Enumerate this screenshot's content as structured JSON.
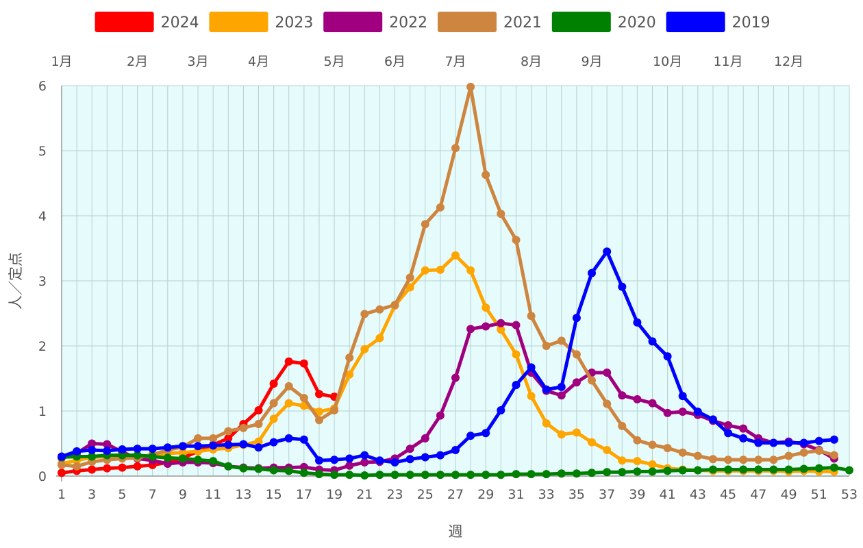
{
  "chart_data": {
    "type": "line",
    "title": "",
    "xlabel": "週",
    "ylabel": "人／定点",
    "xlim": [
      1,
      53
    ],
    "ylim": [
      0,
      6
    ],
    "y_ticks": [
      "0",
      "1",
      "2",
      "3",
      "4",
      "5",
      "6"
    ],
    "x_ticks": [
      "1",
      "3",
      "5",
      "7",
      "9",
      "11",
      "13",
      "15",
      "17",
      "19",
      "21",
      "23",
      "25",
      "27",
      "29",
      "31",
      "33",
      "35",
      "37",
      "39",
      "41",
      "43",
      "45",
      "47",
      "49",
      "51",
      "53"
    ],
    "months": [
      {
        "label": "1月",
        "week": 1
      },
      {
        "label": "2月",
        "week": 6
      },
      {
        "label": "3月",
        "week": 10
      },
      {
        "label": "4月",
        "week": 14
      },
      {
        "label": "5月",
        "week": 19
      },
      {
        "label": "6月",
        "week": 23
      },
      {
        "label": "7月",
        "week": 27
      },
      {
        "label": "8月",
        "week": 32
      },
      {
        "label": "9月",
        "week": 36
      },
      {
        "label": "10月",
        "week": 41
      },
      {
        "label": "11月",
        "week": 45
      },
      {
        "label": "12月",
        "week": 49
      }
    ],
    "legend_position": "top",
    "grid": true,
    "background_color": "#e6fcfc",
    "grid_color": "#b7cfcf",
    "series": [
      {
        "name": "2024",
        "color": "#ff0000",
        "x": [
          1,
          2,
          3,
          4,
          5,
          6,
          7,
          8,
          9,
          10,
          11,
          12,
          13,
          14,
          15,
          16,
          17,
          18,
          19
        ],
        "values": [
          0.05,
          0.08,
          0.1,
          0.12,
          0.13,
          0.15,
          0.17,
          0.21,
          0.28,
          0.38,
          0.48,
          0.58,
          0.8,
          1.01,
          1.42,
          1.76,
          1.73,
          1.26,
          1.22
        ]
      },
      {
        "name": "2023",
        "color": "#ffa500",
        "x": [
          1,
          2,
          3,
          4,
          5,
          6,
          7,
          8,
          9,
          10,
          11,
          12,
          13,
          14,
          15,
          16,
          17,
          18,
          19,
          20,
          21,
          22,
          23,
          24,
          25,
          26,
          27,
          28,
          29,
          30,
          31,
          32,
          33,
          34,
          35,
          36,
          37,
          38,
          39,
          40,
          41,
          42,
          43,
          44,
          45,
          46,
          47,
          48,
          49,
          50,
          51,
          52
        ],
        "values": [
          0.19,
          0.24,
          0.29,
          0.3,
          0.32,
          0.3,
          0.32,
          0.35,
          0.36,
          0.38,
          0.41,
          0.43,
          0.48,
          0.53,
          0.88,
          1.12,
          1.08,
          0.99,
          1.04,
          1.56,
          1.95,
          2.12,
          2.62,
          2.9,
          3.16,
          3.17,
          3.39,
          3.16,
          2.59,
          2.25,
          1.87,
          1.23,
          0.81,
          0.64,
          0.67,
          0.52,
          0.4,
          0.24,
          0.23,
          0.18,
          0.12,
          0.1,
          0.09,
          0.08,
          0.08,
          0.08,
          0.08,
          0.08,
          0.07,
          0.08,
          0.07,
          0.07
        ]
      },
      {
        "name": "2022",
        "color": "#a0007f",
        "x": [
          1,
          2,
          3,
          4,
          5,
          6,
          7,
          8,
          9,
          10,
          11,
          12,
          13,
          14,
          15,
          16,
          17,
          18,
          19,
          20,
          21,
          22,
          23,
          24,
          25,
          26,
          27,
          28,
          29,
          30,
          31,
          32,
          33,
          34,
          35,
          36,
          37,
          38,
          39,
          40,
          41,
          42,
          43,
          44,
          45,
          46,
          47,
          48,
          49,
          50,
          51,
          52
        ],
        "values": [
          0.28,
          0.35,
          0.5,
          0.49,
          0.37,
          0.27,
          0.24,
          0.19,
          0.21,
          0.21,
          0.2,
          0.15,
          0.13,
          0.12,
          0.13,
          0.13,
          0.14,
          0.1,
          0.09,
          0.16,
          0.21,
          0.22,
          0.27,
          0.42,
          0.58,
          0.93,
          1.51,
          2.26,
          2.3,
          2.35,
          2.32,
          1.59,
          1.31,
          1.24,
          1.44,
          1.59,
          1.59,
          1.24,
          1.18,
          1.12,
          0.97,
          0.99,
          0.94,
          0.85,
          0.78,
          0.73,
          0.58,
          0.51,
          0.53,
          0.49,
          0.4,
          0.27
        ]
      },
      {
        "name": "2021",
        "color": "#cd853f",
        "x": [
          1,
          2,
          3,
          4,
          5,
          6,
          7,
          8,
          9,
          10,
          11,
          12,
          13,
          14,
          15,
          16,
          17,
          18,
          19,
          20,
          21,
          22,
          23,
          24,
          25,
          26,
          27,
          28,
          29,
          30,
          31,
          32,
          33,
          34,
          35,
          36,
          37,
          38,
          39,
          40,
          41,
          42,
          43,
          44,
          45,
          46,
          47,
          48,
          49,
          50,
          51,
          52
        ],
        "values": [
          0.17,
          0.15,
          0.22,
          0.25,
          0.27,
          0.28,
          0.33,
          0.4,
          0.45,
          0.58,
          0.58,
          0.69,
          0.74,
          0.8,
          1.12,
          1.38,
          1.2,
          0.86,
          1.01,
          1.82,
          2.49,
          2.56,
          2.63,
          3.05,
          3.87,
          4.13,
          5.04,
          5.98,
          4.63,
          4.03,
          3.63,
          2.46,
          2.0,
          2.08,
          1.87,
          1.47,
          1.11,
          0.77,
          0.55,
          0.48,
          0.43,
          0.36,
          0.31,
          0.26,
          0.25,
          0.25,
          0.25,
          0.25,
          0.31,
          0.36,
          0.39,
          0.32
        ]
      },
      {
        "name": "2020",
        "color": "#008000",
        "x": [
          1,
          2,
          3,
          4,
          5,
          6,
          7,
          8,
          9,
          10,
          11,
          12,
          13,
          14,
          15,
          16,
          17,
          18,
          19,
          20,
          21,
          22,
          23,
          24,
          25,
          26,
          27,
          28,
          29,
          30,
          31,
          32,
          33,
          34,
          35,
          36,
          37,
          38,
          39,
          40,
          41,
          42,
          43,
          44,
          45,
          46,
          47,
          48,
          49,
          50,
          51,
          52,
          53
        ],
        "values": [
          0.29,
          0.3,
          0.3,
          0.32,
          0.32,
          0.32,
          0.3,
          0.28,
          0.27,
          0.25,
          0.23,
          0.15,
          0.12,
          0.11,
          0.09,
          0.08,
          0.05,
          0.03,
          0.02,
          0.02,
          0.01,
          0.02,
          0.02,
          0.02,
          0.02,
          0.02,
          0.02,
          0.02,
          0.02,
          0.02,
          0.03,
          0.03,
          0.03,
          0.04,
          0.04,
          0.05,
          0.06,
          0.06,
          0.07,
          0.07,
          0.08,
          0.09,
          0.09,
          0.1,
          0.1,
          0.1,
          0.1,
          0.1,
          0.1,
          0.11,
          0.12,
          0.13,
          0.09
        ]
      },
      {
        "name": "2019",
        "color": "#0000ff",
        "x": [
          1,
          2,
          3,
          4,
          5,
          6,
          7,
          8,
          9,
          10,
          11,
          12,
          13,
          14,
          15,
          16,
          17,
          18,
          19,
          20,
          21,
          22,
          23,
          24,
          25,
          26,
          27,
          28,
          29,
          30,
          31,
          32,
          33,
          34,
          35,
          36,
          37,
          38,
          39,
          40,
          41,
          42,
          43,
          44,
          45,
          46,
          47,
          48,
          49,
          50,
          51,
          52
        ],
        "values": [
          0.3,
          0.38,
          0.4,
          0.39,
          0.41,
          0.42,
          0.42,
          0.44,
          0.46,
          0.46,
          0.47,
          0.48,
          0.49,
          0.44,
          0.52,
          0.58,
          0.56,
          0.24,
          0.25,
          0.27,
          0.32,
          0.24,
          0.21,
          0.26,
          0.29,
          0.32,
          0.4,
          0.62,
          0.66,
          1.01,
          1.4,
          1.67,
          1.33,
          1.37,
          2.43,
          3.12,
          3.45,
          2.91,
          2.36,
          2.07,
          1.84,
          1.23,
          0.99,
          0.87,
          0.66,
          0.58,
          0.51,
          0.51,
          0.51,
          0.51,
          0.54,
          0.56
        ]
      }
    ]
  }
}
